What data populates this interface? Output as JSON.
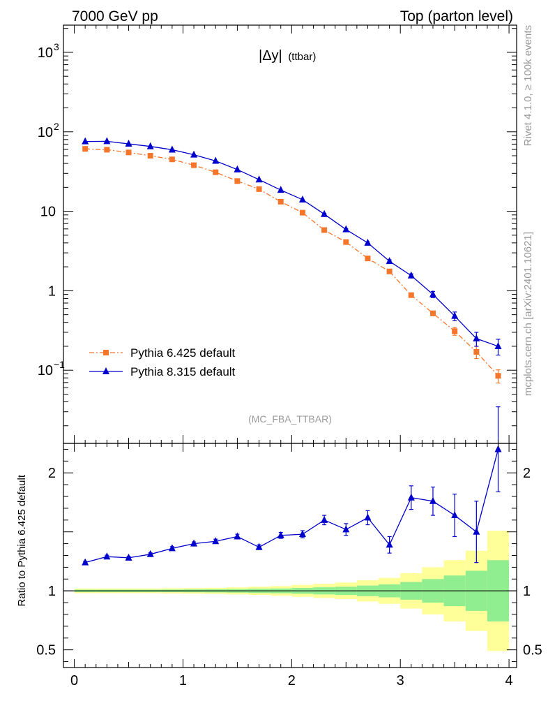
{
  "header": {
    "left": "7000 GeV pp",
    "right": "Top (parton level)"
  },
  "side_labels": {
    "rivet": "Rivet 4.1.0, ≥ 100k events",
    "mcplots": "mcplots.cern.ch [arXiv:2401.10621]"
  },
  "chart_data": {
    "type": "line",
    "title": "|Δy|",
    "title_suffix": "(ttbar)",
    "analysis": "(MC_FBA_TTBAR)",
    "xlabel": "",
    "ylabel_ratio": "Ratio to Pythia 6.425 default",
    "xlim": [
      -0.1,
      4.07
    ],
    "ylim_main": [
      0.012,
      2200
    ],
    "yscale_main": "log",
    "ylim_ratio": [
      0.35,
      2.25
    ],
    "x_ticks": [
      0,
      1,
      2,
      3,
      4
    ],
    "main_y_ticks": [
      {
        "value": 0.1,
        "base": "10",
        "exp": "−1"
      },
      {
        "value": 1,
        "base": "1",
        "exp": ""
      },
      {
        "value": 10,
        "base": "10",
        "exp": ""
      },
      {
        "value": 100,
        "base": "10",
        "exp": "2"
      },
      {
        "value": 1000,
        "base": "10",
        "exp": "3"
      }
    ],
    "ratio_y_ticks": [
      0.5,
      1,
      2
    ],
    "legend_position": "lower-left",
    "x": [
      0.1,
      0.3,
      0.5,
      0.7,
      0.9,
      1.1,
      1.3,
      1.5,
      1.7,
      1.9,
      2.1,
      2.3,
      2.5,
      2.7,
      2.9,
      3.1,
      3.3,
      3.5,
      3.7,
      3.9
    ],
    "series": [
      {
        "name": "Pythia 6.425 default",
        "color": "#f5762b",
        "marker": "square",
        "line_style": "dashdot",
        "values": [
          61,
          59.5,
          55,
          50,
          45,
          38,
          31,
          24,
          19,
          13.2,
          9.6,
          5.8,
          4.1,
          2.55,
          1.75,
          0.88,
          0.52,
          0.31,
          0.17,
          0.085
        ],
        "errors": [
          0.6,
          0.6,
          0.6,
          0.6,
          0.5,
          0.4,
          0.4,
          0.3,
          0.3,
          0.2,
          0.15,
          0.12,
          0.1,
          0.08,
          0.06,
          0.04,
          0.035,
          0.035,
          0.03,
          0.016
        ],
        "ratio": [
          1,
          1,
          1,
          1,
          1,
          1,
          1,
          1,
          1,
          1,
          1,
          1,
          1,
          1,
          1,
          1,
          1,
          1,
          1,
          1
        ]
      },
      {
        "name": "Pythia 8.315 default",
        "color": "#0000cc",
        "marker": "triangle",
        "line_style": "solid",
        "values": [
          75.5,
          76,
          70.5,
          65.5,
          59.5,
          51.5,
          43,
          33.5,
          25,
          18.5,
          14,
          9.2,
          5.9,
          4.0,
          2.35,
          1.55,
          0.9,
          0.48,
          0.25,
          0.2
        ],
        "errors": [
          0.7,
          0.7,
          0.7,
          0.6,
          0.6,
          0.5,
          0.5,
          0.4,
          0.3,
          0.3,
          0.2,
          0.2,
          0.15,
          0.12,
          0.1,
          0.08,
          0.08,
          0.06,
          0.05,
          0.045
        ],
        "ratio": [
          1.24,
          1.29,
          1.28,
          1.31,
          1.36,
          1.4,
          1.42,
          1.46,
          1.37,
          1.47,
          1.48,
          1.6,
          1.52,
          1.62,
          1.39,
          1.79,
          1.76,
          1.64,
          1.5,
          2.2
        ],
        "ratio_errors": [
          0.01,
          0.012,
          0.012,
          0.012,
          0.015,
          0.015,
          0.018,
          0.02,
          0.02,
          0.025,
          0.03,
          0.04,
          0.05,
          0.06,
          0.07,
          0.1,
          0.12,
          0.18,
          0.26,
          0.36
        ]
      }
    ],
    "ratio_bands": {
      "edges": [
        0,
        0.2,
        0.4,
        0.6,
        0.8,
        1.0,
        1.2,
        1.4,
        1.6,
        1.8,
        2.0,
        2.2,
        2.4,
        2.6,
        2.8,
        3.0,
        3.2,
        3.4,
        3.6,
        3.8,
        4.0
      ],
      "green_color": "#90ee90",
      "yellow_color": "#ffff99",
      "green_half_width": [
        0.01,
        0.01,
        0.01,
        0.01,
        0.011,
        0.012,
        0.013,
        0.015,
        0.018,
        0.02,
        0.025,
        0.03,
        0.035,
        0.045,
        0.055,
        0.075,
        0.1,
        0.13,
        0.17,
        0.26
      ],
      "yellow_half_width": [
        0.02,
        0.02,
        0.02,
        0.02,
        0.022,
        0.024,
        0.026,
        0.03,
        0.035,
        0.04,
        0.05,
        0.06,
        0.07,
        0.09,
        0.11,
        0.15,
        0.2,
        0.26,
        0.34,
        0.51
      ]
    }
  }
}
